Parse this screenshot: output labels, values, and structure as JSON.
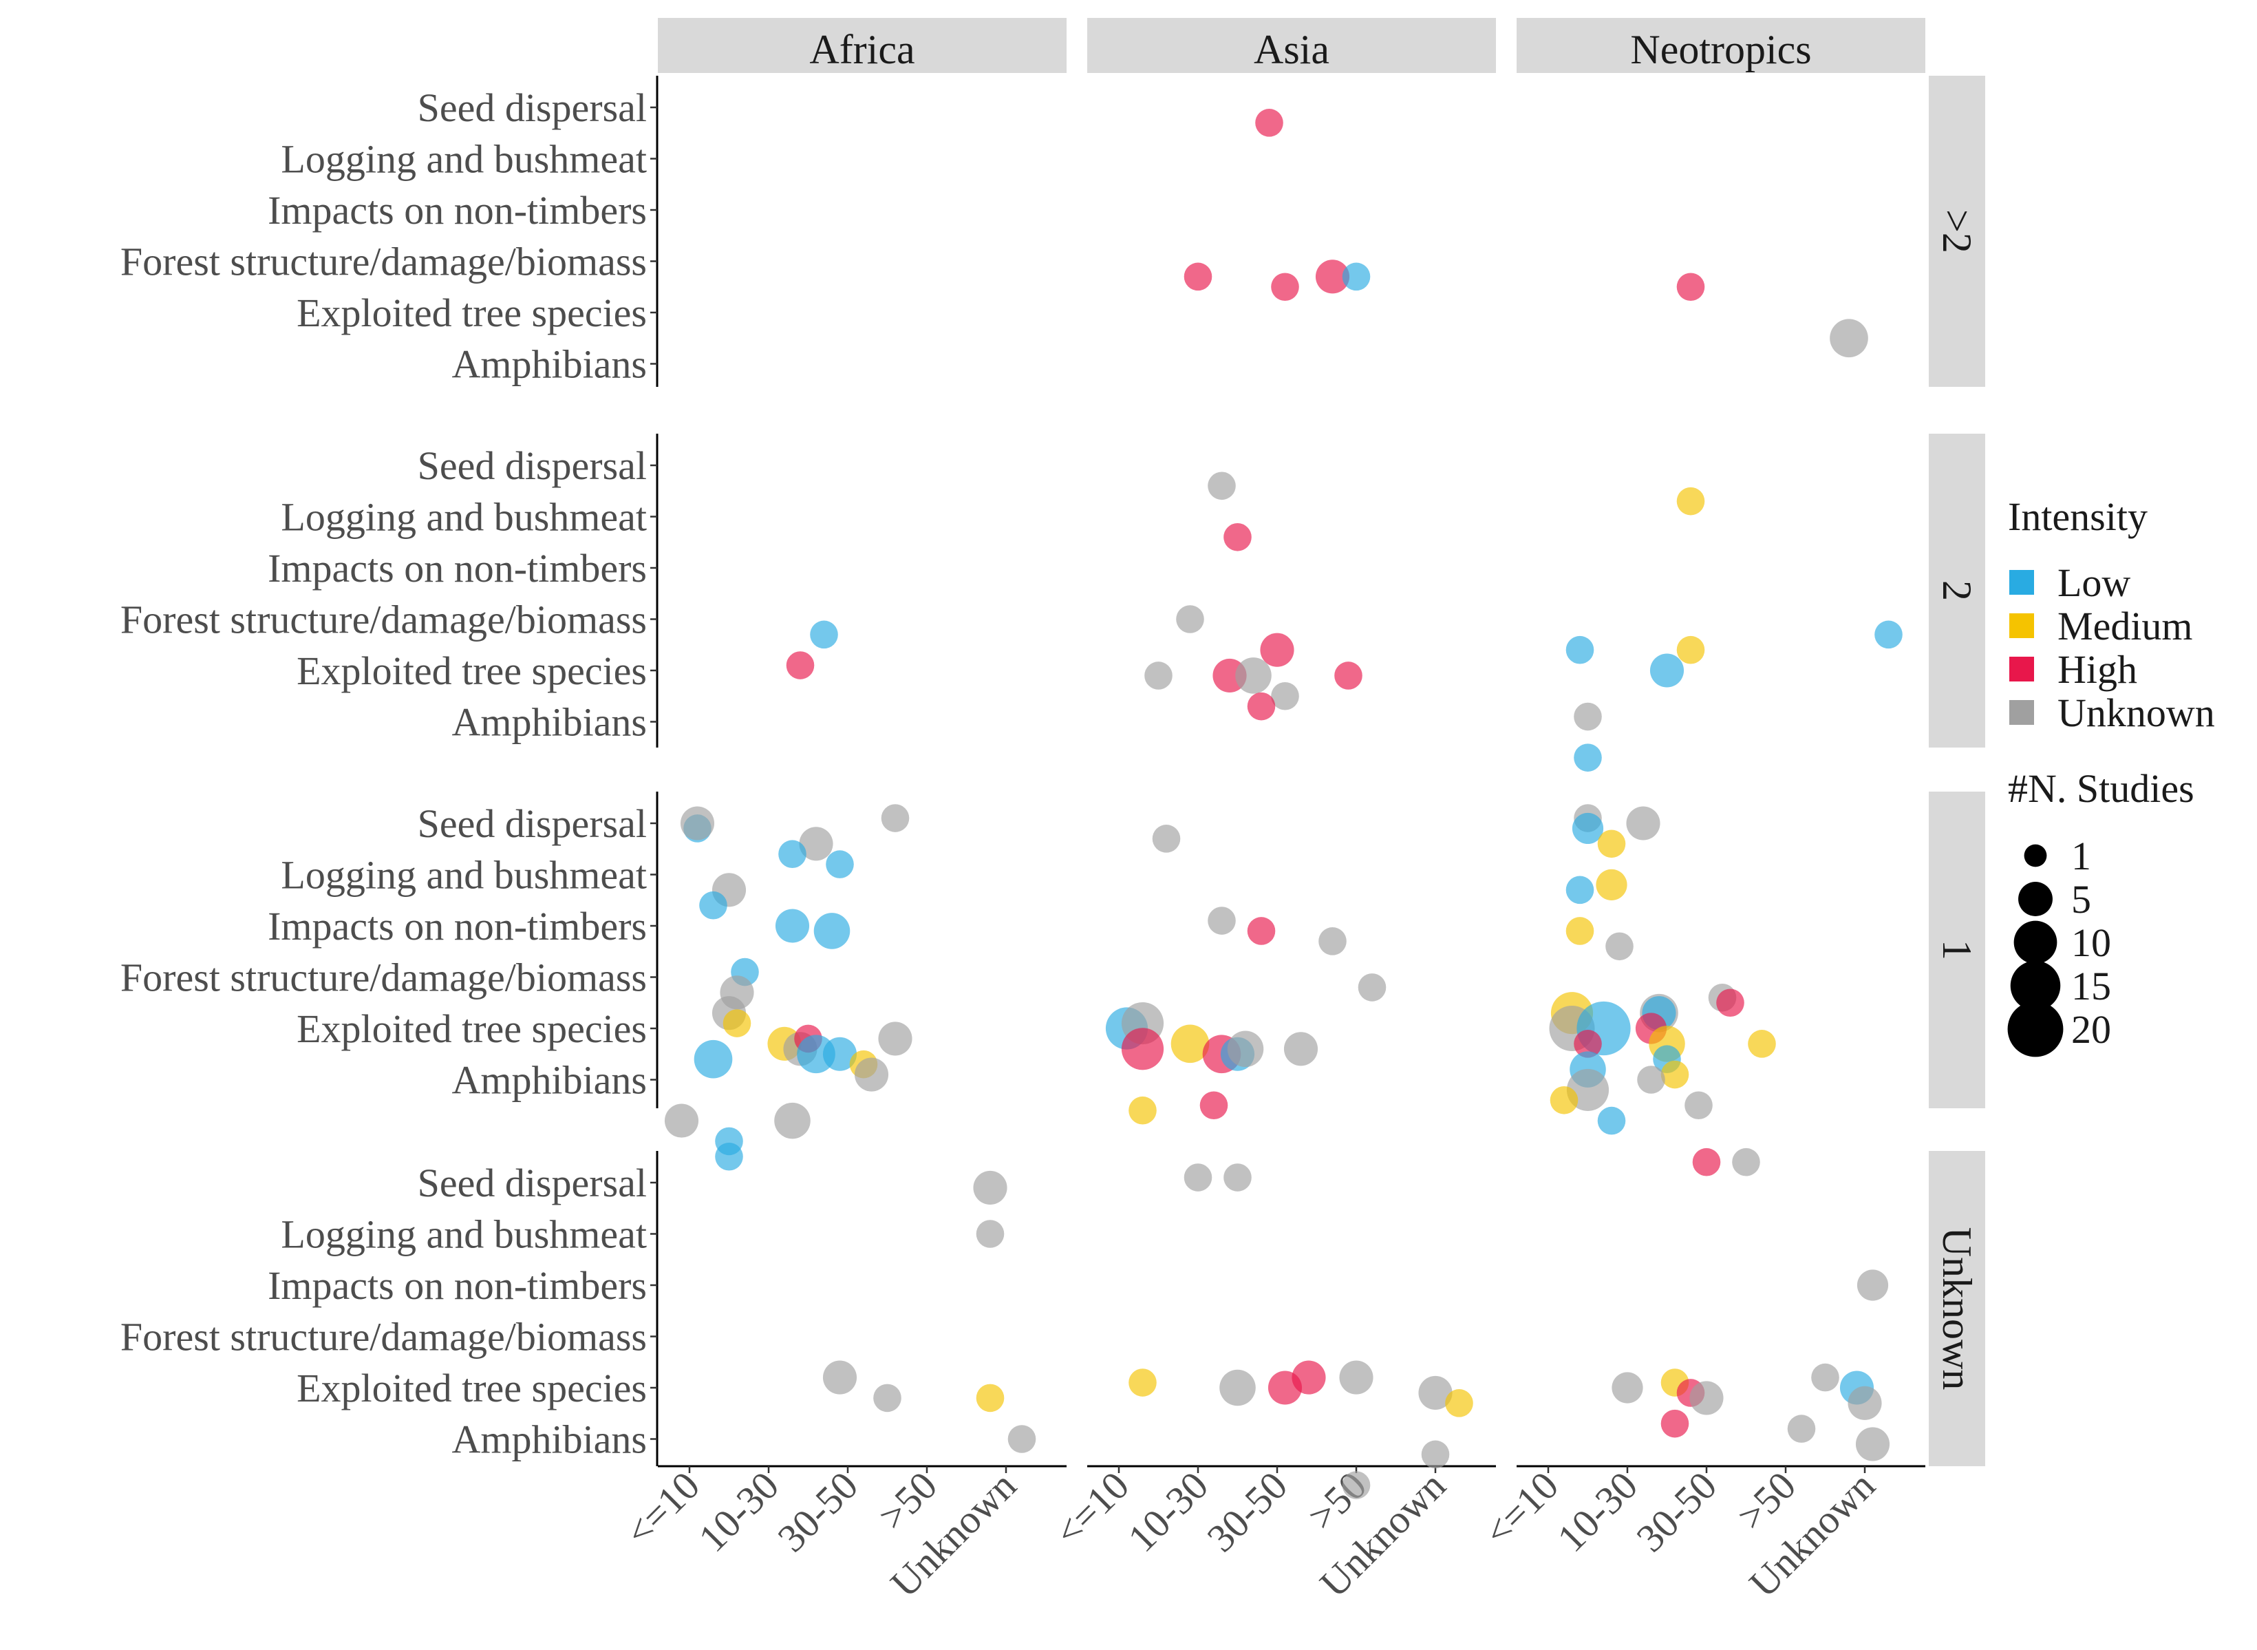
{
  "chart_data": {
    "type": "scatter",
    "facet_columns": [
      "Africa",
      "Asia",
      "Neotropics"
    ],
    "facet_rows": [
      ">2",
      "2",
      "1",
      "Unknown"
    ],
    "x_categories": [
      "<=10",
      "10-30",
      "30-50",
      ">50",
      "Unknown"
    ],
    "y_categories": [
      "Seed dispersal",
      "Logging and bushmeat",
      "Impacts on non-timbers",
      "Forest structure/damage/biomass",
      "Exploited tree species",
      "Amphibians"
    ],
    "legend": {
      "placement": "right",
      "intensity": {
        "title": "Intensity",
        "entries": [
          {
            "label": "Low",
            "color": "#29ABE2"
          },
          {
            "label": "Medium",
            "color": "#F5C300"
          },
          {
            "label": "High",
            "color": "#E8174B"
          },
          {
            "label": "Unknown",
            "color": "#A0A0A0"
          }
        ]
      },
      "studies": {
        "title": "#N. Studies",
        "entries": [
          {
            "label": "1",
            "n": 1
          },
          {
            "label": "5",
            "n": 5
          },
          {
            "label": "10",
            "n": 10
          },
          {
            "label": "15",
            "n": 15
          },
          {
            "label": "20",
            "n": 20
          }
        ]
      }
    },
    "points": [
      {
        "col": "Asia",
        "row": ">2",
        "x": 2.9,
        "y": 0.3,
        "intensity": "High",
        "n": 2
      },
      {
        "col": "Asia",
        "row": ">2",
        "x": 2.0,
        "y": 3.3,
        "intensity": "High",
        "n": 2
      },
      {
        "col": "Asia",
        "row": ">2",
        "x": 3.1,
        "y": 3.5,
        "intensity": "High",
        "n": 2
      },
      {
        "col": "Asia",
        "row": ">2",
        "x": 3.7,
        "y": 3.3,
        "intensity": "High",
        "n": 4
      },
      {
        "col": "Asia",
        "row": ">2",
        "x": 4.0,
        "y": 3.3,
        "intensity": "Low",
        "n": 2
      },
      {
        "col": "Neotropics",
        "row": ">2",
        "x": 2.8,
        "y": 3.5,
        "intensity": "High",
        "n": 2
      },
      {
        "col": "Neotropics",
        "row": ">2",
        "x": 4.8,
        "y": 4.5,
        "intensity": "Unknown",
        "n": 6
      },
      {
        "col": "Africa",
        "row": "2",
        "x": 2.7,
        "y": 3.3,
        "intensity": "Low",
        "n": 2
      },
      {
        "col": "Africa",
        "row": "2",
        "x": 2.4,
        "y": 3.9,
        "intensity": "High",
        "n": 2
      },
      {
        "col": "Asia",
        "row": "2",
        "x": 2.3,
        "y": 0.4,
        "intensity": "Unknown",
        "n": 2
      },
      {
        "col": "Asia",
        "row": "2",
        "x": 2.5,
        "y": 1.4,
        "intensity": "High",
        "n": 2
      },
      {
        "col": "Asia",
        "row": "2",
        "x": 1.9,
        "y": 3.0,
        "intensity": "Unknown",
        "n": 2
      },
      {
        "col": "Asia",
        "row": "2",
        "x": 3.0,
        "y": 3.6,
        "intensity": "High",
        "n": 4
      },
      {
        "col": "Asia",
        "row": "2",
        "x": 1.5,
        "y": 4.1,
        "intensity": "Unknown",
        "n": 2
      },
      {
        "col": "Asia",
        "row": "2",
        "x": 2.4,
        "y": 4.1,
        "intensity": "High",
        "n": 4
      },
      {
        "col": "Asia",
        "row": "2",
        "x": 2.7,
        "y": 4.1,
        "intensity": "Unknown",
        "n": 5
      },
      {
        "col": "Asia",
        "row": "2",
        "x": 3.9,
        "y": 4.1,
        "intensity": "High",
        "n": 2
      },
      {
        "col": "Asia",
        "row": "2",
        "x": 3.1,
        "y": 4.5,
        "intensity": "Unknown",
        "n": 2
      },
      {
        "col": "Asia",
        "row": "2",
        "x": 2.8,
        "y": 4.7,
        "intensity": "High",
        "n": 2
      },
      {
        "col": "Neotropics",
        "row": "2",
        "x": 2.8,
        "y": 0.7,
        "intensity": "Medium",
        "n": 2
      },
      {
        "col": "Neotropics",
        "row": "2",
        "x": 5.3,
        "y": 3.3,
        "intensity": "Low",
        "n": 2
      },
      {
        "col": "Neotropics",
        "row": "2",
        "x": 1.4,
        "y": 3.6,
        "intensity": "Low",
        "n": 2
      },
      {
        "col": "Neotropics",
        "row": "2",
        "x": 2.8,
        "y": 3.6,
        "intensity": "Medium",
        "n": 2
      },
      {
        "col": "Neotropics",
        "row": "2",
        "x": 2.5,
        "y": 4.0,
        "intensity": "Low",
        "n": 4
      },
      {
        "col": "Neotropics",
        "row": "2",
        "x": 1.5,
        "y": 4.9,
        "intensity": "Unknown",
        "n": 2
      },
      {
        "col": "Neotropics",
        "row": "2",
        "x": 1.5,
        "y": 5.7,
        "intensity": "Low",
        "n": 2
      },
      {
        "col": "Africa",
        "row": "1",
        "x": 1.1,
        "y": 0.1,
        "intensity": "Low",
        "n": 2
      },
      {
        "col": "Africa",
        "row": "1",
        "x": 1.1,
        "y": 0.0,
        "intensity": "Unknown",
        "n": 4
      },
      {
        "col": "Africa",
        "row": "1",
        "x": 3.6,
        "y": -0.1,
        "intensity": "Unknown",
        "n": 2
      },
      {
        "col": "Africa",
        "row": "1",
        "x": 2.6,
        "y": 0.4,
        "intensity": "Unknown",
        "n": 4
      },
      {
        "col": "Africa",
        "row": "1",
        "x": 2.3,
        "y": 0.6,
        "intensity": "Low",
        "n": 2
      },
      {
        "col": "Africa",
        "row": "1",
        "x": 2.9,
        "y": 0.8,
        "intensity": "Low",
        "n": 2
      },
      {
        "col": "Africa",
        "row": "1",
        "x": 1.5,
        "y": 1.3,
        "intensity": "Unknown",
        "n": 4
      },
      {
        "col": "Africa",
        "row": "1",
        "x": 1.3,
        "y": 1.6,
        "intensity": "Low",
        "n": 2
      },
      {
        "col": "Africa",
        "row": "1",
        "x": 2.3,
        "y": 2.0,
        "intensity": "Low",
        "n": 4
      },
      {
        "col": "Africa",
        "row": "1",
        "x": 2.8,
        "y": 2.1,
        "intensity": "Low",
        "n": 5
      },
      {
        "col": "Africa",
        "row": "1",
        "x": 1.7,
        "y": 2.9,
        "intensity": "Low",
        "n": 2
      },
      {
        "col": "Africa",
        "row": "1",
        "x": 1.6,
        "y": 3.3,
        "intensity": "Unknown",
        "n": 4
      },
      {
        "col": "Africa",
        "row": "1",
        "x": 1.5,
        "y": 3.7,
        "intensity": "Unknown",
        "n": 4
      },
      {
        "col": "Africa",
        "row": "1",
        "x": 1.6,
        "y": 3.9,
        "intensity": "Medium",
        "n": 2
      },
      {
        "col": "Africa",
        "row": "1",
        "x": 2.2,
        "y": 4.3,
        "intensity": "Medium",
        "n": 4
      },
      {
        "col": "Africa",
        "row": "1",
        "x": 2.4,
        "y": 4.4,
        "intensity": "Unknown",
        "n": 4
      },
      {
        "col": "Africa",
        "row": "1",
        "x": 2.5,
        "y": 4.2,
        "intensity": "High",
        "n": 2
      },
      {
        "col": "Africa",
        "row": "1",
        "x": 2.6,
        "y": 4.5,
        "intensity": "Low",
        "n": 6
      },
      {
        "col": "Africa",
        "row": "1",
        "x": 2.9,
        "y": 4.5,
        "intensity": "Low",
        "n": 4
      },
      {
        "col": "Africa",
        "row": "1",
        "x": 3.2,
        "y": 4.7,
        "intensity": "Medium",
        "n": 2
      },
      {
        "col": "Africa",
        "row": "1",
        "x": 3.3,
        "y": 4.9,
        "intensity": "Unknown",
        "n": 4
      },
      {
        "col": "Africa",
        "row": "1",
        "x": 1.3,
        "y": 4.6,
        "intensity": "Low",
        "n": 6
      },
      {
        "col": "Africa",
        "row": "1",
        "x": 3.6,
        "y": 4.2,
        "intensity": "Unknown",
        "n": 4
      },
      {
        "col": "Africa",
        "row": "1",
        "x": 0.9,
        "y": 5.8,
        "intensity": "Unknown",
        "n": 4
      },
      {
        "col": "Africa",
        "row": "1",
        "x": 2.3,
        "y": 5.8,
        "intensity": "Unknown",
        "n": 5
      },
      {
        "col": "Africa",
        "row": "1",
        "x": 1.5,
        "y": 6.2,
        "intensity": "Low",
        "n": 2
      },
      {
        "col": "Africa",
        "row": "1",
        "x": 1.5,
        "y": 6.5,
        "intensity": "Low",
        "n": 2
      },
      {
        "col": "Asia",
        "row": "1",
        "x": 1.6,
        "y": 0.3,
        "intensity": "Unknown",
        "n": 2
      },
      {
        "col": "Asia",
        "row": "1",
        "x": 2.3,
        "y": 1.9,
        "intensity": "Unknown",
        "n": 2
      },
      {
        "col": "Asia",
        "row": "1",
        "x": 2.8,
        "y": 2.1,
        "intensity": "High",
        "n": 2
      },
      {
        "col": "Asia",
        "row": "1",
        "x": 3.7,
        "y": 2.3,
        "intensity": "Unknown",
        "n": 2
      },
      {
        "col": "Asia",
        "row": "1",
        "x": 4.2,
        "y": 3.2,
        "intensity": "Unknown",
        "n": 2
      },
      {
        "col": "Asia",
        "row": "1",
        "x": 1.1,
        "y": 4.0,
        "intensity": "Low",
        "n": 8
      },
      {
        "col": "Asia",
        "row": "1",
        "x": 1.3,
        "y": 3.9,
        "intensity": "Unknown",
        "n": 8
      },
      {
        "col": "Asia",
        "row": "1",
        "x": 1.3,
        "y": 4.4,
        "intensity": "High",
        "n": 8
      },
      {
        "col": "Asia",
        "row": "1",
        "x": 1.9,
        "y": 4.3,
        "intensity": "Medium",
        "n": 6
      },
      {
        "col": "Asia",
        "row": "1",
        "x": 2.3,
        "y": 4.5,
        "intensity": "High",
        "n": 6
      },
      {
        "col": "Asia",
        "row": "1",
        "x": 2.5,
        "y": 4.5,
        "intensity": "Low",
        "n": 4
      },
      {
        "col": "Asia",
        "row": "1",
        "x": 2.6,
        "y": 4.4,
        "intensity": "Unknown",
        "n": 5
      },
      {
        "col": "Asia",
        "row": "1",
        "x": 3.3,
        "y": 4.4,
        "intensity": "Unknown",
        "n": 4
      },
      {
        "col": "Asia",
        "row": "1",
        "x": 1.3,
        "y": 5.6,
        "intensity": "Medium",
        "n": 2
      },
      {
        "col": "Asia",
        "row": "1",
        "x": 2.2,
        "y": 5.5,
        "intensity": "High",
        "n": 2
      },
      {
        "col": "Neotropics",
        "row": "1",
        "x": 1.5,
        "y": -0.1,
        "intensity": "Unknown",
        "n": 2
      },
      {
        "col": "Neotropics",
        "row": "1",
        "x": 1.5,
        "y": 0.1,
        "intensity": "Low",
        "n": 3
      },
      {
        "col": "Neotropics",
        "row": "1",
        "x": 2.2,
        "y": 0.0,
        "intensity": "Unknown",
        "n": 4
      },
      {
        "col": "Neotropics",
        "row": "1",
        "x": 1.8,
        "y": 0.4,
        "intensity": "Medium",
        "n": 2
      },
      {
        "col": "Neotropics",
        "row": "1",
        "x": 1.8,
        "y": 1.2,
        "intensity": "Medium",
        "n": 3
      },
      {
        "col": "Neotropics",
        "row": "1",
        "x": 1.4,
        "y": 1.3,
        "intensity": "Low",
        "n": 2
      },
      {
        "col": "Neotropics",
        "row": "1",
        "x": 1.4,
        "y": 2.1,
        "intensity": "Medium",
        "n": 2
      },
      {
        "col": "Neotropics",
        "row": "1",
        "x": 1.9,
        "y": 2.4,
        "intensity": "Unknown",
        "n": 2
      },
      {
        "col": "Neotropics",
        "row": "1",
        "x": 1.3,
        "y": 3.7,
        "intensity": "Medium",
        "n": 8
      },
      {
        "col": "Neotropics",
        "row": "1",
        "x": 1.3,
        "y": 4.0,
        "intensity": "Unknown",
        "n": 10
      },
      {
        "col": "Neotropics",
        "row": "1",
        "x": 1.7,
        "y": 4.0,
        "intensity": "Low",
        "n": 16
      },
      {
        "col": "Neotropics",
        "row": "1",
        "x": 1.5,
        "y": 4.3,
        "intensity": "High",
        "n": 2
      },
      {
        "col": "Neotropics",
        "row": "1",
        "x": 2.4,
        "y": 3.7,
        "intensity": "Unknown",
        "n": 6
      },
      {
        "col": "Neotropics",
        "row": "1",
        "x": 2.4,
        "y": 3.7,
        "intensity": "Low",
        "n": 4
      },
      {
        "col": "Neotropics",
        "row": "1",
        "x": 2.3,
        "y": 4.0,
        "intensity": "High",
        "n": 3
      },
      {
        "col": "Neotropics",
        "row": "1",
        "x": 2.5,
        "y": 4.3,
        "intensity": "Medium",
        "n": 5
      },
      {
        "col": "Neotropics",
        "row": "1",
        "x": 2.5,
        "y": 4.6,
        "intensity": "Low",
        "n": 2
      },
      {
        "col": "Neotropics",
        "row": "1",
        "x": 2.6,
        "y": 4.9,
        "intensity": "Medium",
        "n": 2
      },
      {
        "col": "Neotropics",
        "row": "1",
        "x": 2.3,
        "y": 5.0,
        "intensity": "Unknown",
        "n": 2
      },
      {
        "col": "Neotropics",
        "row": "1",
        "x": 2.9,
        "y": 5.5,
        "intensity": "Unknown",
        "n": 2
      },
      {
        "col": "Neotropics",
        "row": "1",
        "x": 3.2,
        "y": 3.4,
        "intensity": "Unknown",
        "n": 2
      },
      {
        "col": "Neotropics",
        "row": "1",
        "x": 3.3,
        "y": 3.5,
        "intensity": "High",
        "n": 2
      },
      {
        "col": "Neotropics",
        "row": "1",
        "x": 3.7,
        "y": 4.3,
        "intensity": "Medium",
        "n": 2
      },
      {
        "col": "Neotropics",
        "row": "1",
        "x": 1.5,
        "y": 4.8,
        "intensity": "Low",
        "n": 5
      },
      {
        "col": "Neotropics",
        "row": "1",
        "x": 1.5,
        "y": 5.2,
        "intensity": "Unknown",
        "n": 8
      },
      {
        "col": "Neotropics",
        "row": "1",
        "x": 1.2,
        "y": 5.4,
        "intensity": "Medium",
        "n": 2
      },
      {
        "col": "Neotropics",
        "row": "1",
        "x": 1.8,
        "y": 5.8,
        "intensity": "Low",
        "n": 2
      },
      {
        "col": "Africa",
        "row": "Unknown",
        "x": 4.8,
        "y": 0.1,
        "intensity": "Unknown",
        "n": 4
      },
      {
        "col": "Africa",
        "row": "Unknown",
        "x": 4.8,
        "y": 1.0,
        "intensity": "Unknown",
        "n": 2
      },
      {
        "col": "Africa",
        "row": "Unknown",
        "x": 2.9,
        "y": 3.8,
        "intensity": "Unknown",
        "n": 4
      },
      {
        "col": "Africa",
        "row": "Unknown",
        "x": 3.5,
        "y": 4.2,
        "intensity": "Unknown",
        "n": 2
      },
      {
        "col": "Africa",
        "row": "Unknown",
        "x": 4.8,
        "y": 4.2,
        "intensity": "Medium",
        "n": 2
      },
      {
        "col": "Africa",
        "row": "Unknown",
        "x": 5.2,
        "y": 5.0,
        "intensity": "Unknown",
        "n": 2
      },
      {
        "col": "Asia",
        "row": "Unknown",
        "x": 2.0,
        "y": -0.1,
        "intensity": "Unknown",
        "n": 2
      },
      {
        "col": "Asia",
        "row": "Unknown",
        "x": 2.5,
        "y": -0.1,
        "intensity": "Unknown",
        "n": 2
      },
      {
        "col": "Asia",
        "row": "Unknown",
        "x": 1.3,
        "y": 3.9,
        "intensity": "Medium",
        "n": 2
      },
      {
        "col": "Asia",
        "row": "Unknown",
        "x": 2.5,
        "y": 4.0,
        "intensity": "Unknown",
        "n": 5
      },
      {
        "col": "Asia",
        "row": "Unknown",
        "x": 3.1,
        "y": 4.0,
        "intensity": "High",
        "n": 4
      },
      {
        "col": "Asia",
        "row": "Unknown",
        "x": 3.4,
        "y": 3.8,
        "intensity": "High",
        "n": 4
      },
      {
        "col": "Asia",
        "row": "Unknown",
        "x": 4.0,
        "y": 3.8,
        "intensity": "Unknown",
        "n": 4
      },
      {
        "col": "Asia",
        "row": "Unknown",
        "x": 5.0,
        "y": 4.1,
        "intensity": "Unknown",
        "n": 4
      },
      {
        "col": "Asia",
        "row": "Unknown",
        "x": 5.3,
        "y": 4.3,
        "intensity": "Medium",
        "n": 2
      },
      {
        "col": "Asia",
        "row": "Unknown",
        "x": 5.0,
        "y": 5.3,
        "intensity": "Unknown",
        "n": 2
      },
      {
        "col": "Asia",
        "row": "Unknown",
        "x": 4.0,
        "y": 5.9,
        "intensity": "Unknown",
        "n": 2
      },
      {
        "col": "Neotropics",
        "row": "Unknown",
        "x": 3.0,
        "y": -0.4,
        "intensity": "High",
        "n": 2
      },
      {
        "col": "Neotropics",
        "row": "Unknown",
        "x": 3.5,
        "y": -0.4,
        "intensity": "Unknown",
        "n": 2
      },
      {
        "col": "Neotropics",
        "row": "Unknown",
        "x": 5.1,
        "y": 2.0,
        "intensity": "Unknown",
        "n": 3
      },
      {
        "col": "Neotropics",
        "row": "Unknown",
        "x": 2.0,
        "y": 4.0,
        "intensity": "Unknown",
        "n": 3
      },
      {
        "col": "Neotropics",
        "row": "Unknown",
        "x": 2.6,
        "y": 3.9,
        "intensity": "Medium",
        "n": 2
      },
      {
        "col": "Neotropics",
        "row": "Unknown",
        "x": 2.8,
        "y": 4.1,
        "intensity": "High",
        "n": 2
      },
      {
        "col": "Neotropics",
        "row": "Unknown",
        "x": 3.0,
        "y": 4.2,
        "intensity": "Unknown",
        "n": 4
      },
      {
        "col": "Neotropics",
        "row": "Unknown",
        "x": 4.5,
        "y": 3.8,
        "intensity": "Unknown",
        "n": 2
      },
      {
        "col": "Neotropics",
        "row": "Unknown",
        "x": 4.9,
        "y": 4.0,
        "intensity": "Low",
        "n": 4
      },
      {
        "col": "Neotropics",
        "row": "Unknown",
        "x": 5.0,
        "y": 4.3,
        "intensity": "Unknown",
        "n": 4
      },
      {
        "col": "Neotropics",
        "row": "Unknown",
        "x": 2.6,
        "y": 4.7,
        "intensity": "High",
        "n": 2
      },
      {
        "col": "Neotropics",
        "row": "Unknown",
        "x": 4.2,
        "y": 4.8,
        "intensity": "Unknown",
        "n": 2
      },
      {
        "col": "Neotropics",
        "row": "Unknown",
        "x": 5.1,
        "y": 5.1,
        "intensity": "Unknown",
        "n": 4
      }
    ]
  }
}
